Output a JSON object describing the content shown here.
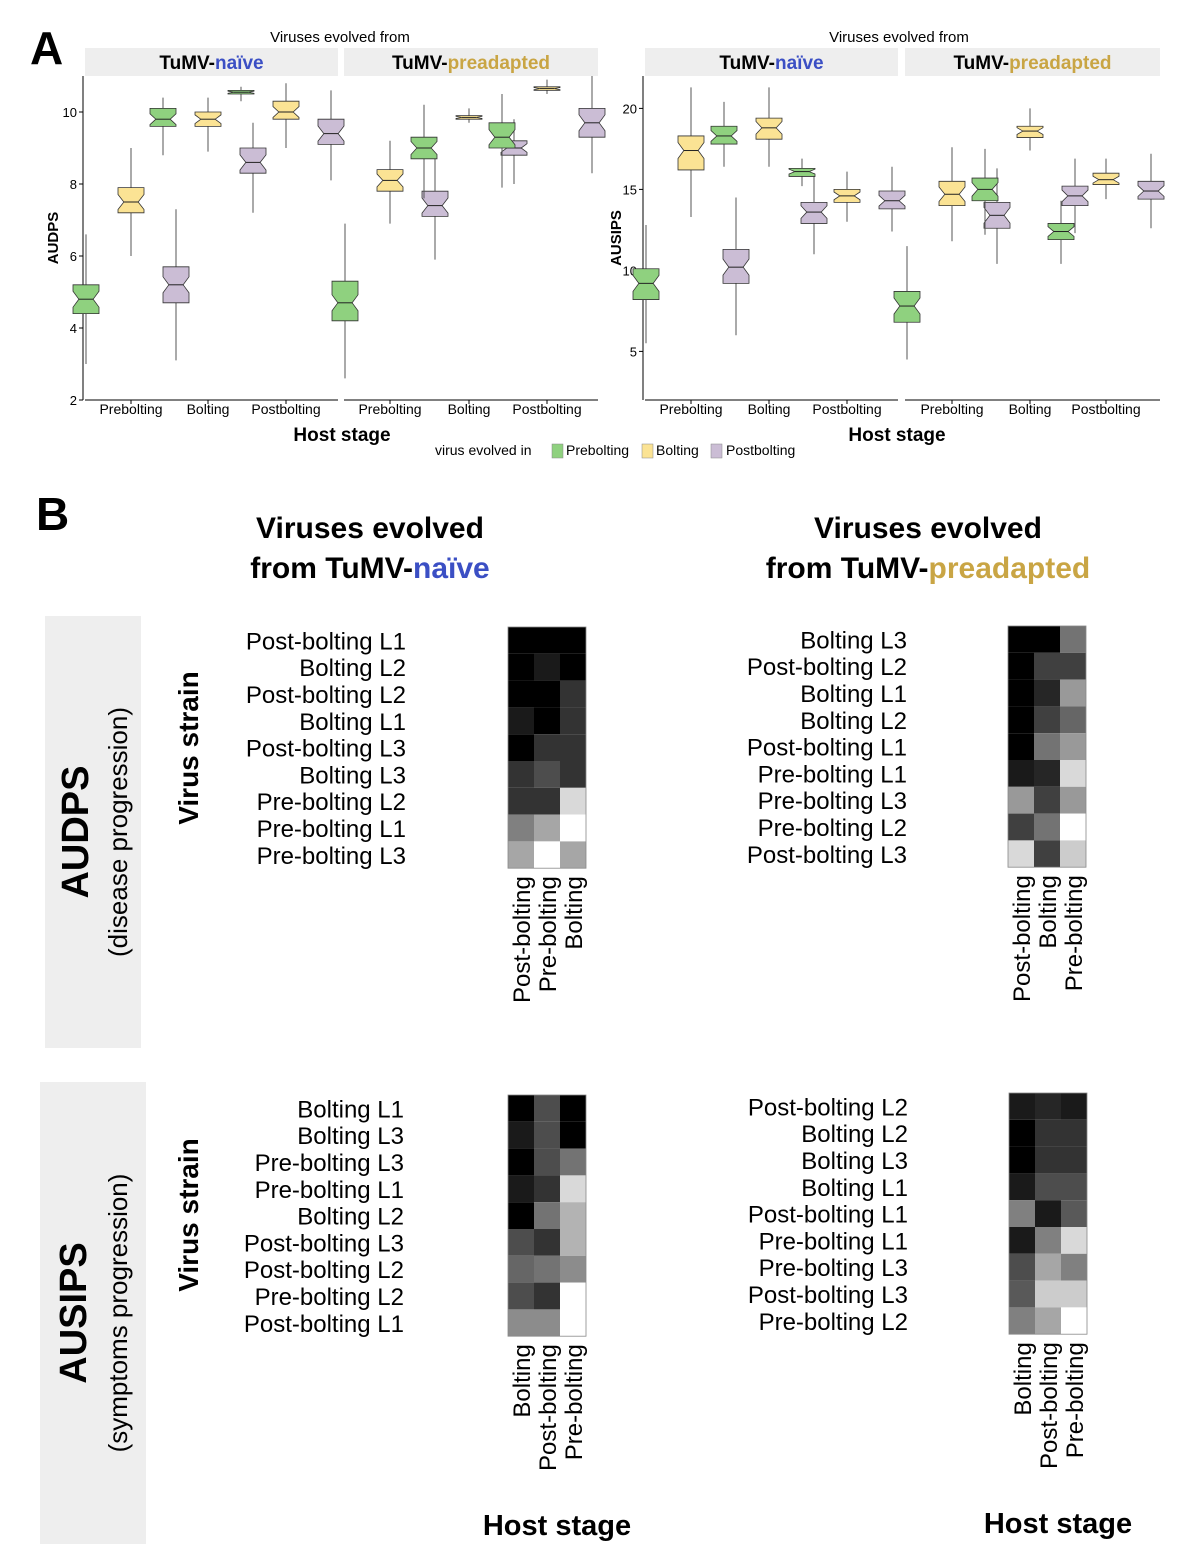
{
  "panel_a": {
    "letter": "A",
    "group_caption": "Viruses evolved from",
    "strip_prefix": "TuMV-",
    "strip_naive": "naïve",
    "strip_preadapted": "preadapted",
    "x_title": "Host stage",
    "host_stages": [
      "Prebolting",
      "Bolting",
      "Postbolting"
    ],
    "legend_title": "virus evolved in",
    "legend_items": [
      "Prebolting",
      "Bolting",
      "Postbolting"
    ]
  },
  "panel_b": {
    "letter": "B",
    "col_title_line1": "Viruses evolved",
    "col_title_line2_prefix": "from TuMV-",
    "naive_word": "naïve",
    "preadapted_word": "preadapted",
    "row_audps_main": "AUDPS",
    "row_audps_sub": "(disease progression)",
    "row_ausips_main": "AUSIPS",
    "row_ausips_sub": "(symptoms progression)",
    "y_title": "Virus strain",
    "x_title": "Host stage"
  },
  "colors": {
    "prebolting": "#8fd17f",
    "bolting": "#fbe394",
    "postbolting": "#cbbdd5",
    "naive_blue": "#3b4fc4",
    "preadapted_gold": "#c9a544",
    "strip_bg": "#eeeeee",
    "row_label_bg": "#eeeeee"
  },
  "chart_data": [
    {
      "type": "boxplot",
      "ylabel": "AUDPS",
      "xlabel": "Host stage",
      "ylim": [
        2,
        11
      ],
      "yticks": [
        2,
        4,
        6,
        8,
        10
      ],
      "facets": [
        "TuMV-naïve",
        "TuMV-preadapted"
      ],
      "categories": [
        "Prebolting",
        "Bolting",
        "Postbolting"
      ],
      "series_names": [
        "Prebolting",
        "Bolting",
        "Postbolting"
      ],
      "boxes": [
        {
          "facet": 0,
          "host": 0,
          "series": 0,
          "min": 3.0,
          "q1": 4.4,
          "median": 4.8,
          "q3": 5.2,
          "max": 6.6
        },
        {
          "facet": 0,
          "host": 0,
          "series": 1,
          "min": 6.0,
          "q1": 7.2,
          "median": 7.5,
          "q3": 7.9,
          "max": 9.0
        },
        {
          "facet": 0,
          "host": 0,
          "series": 2,
          "min": 3.1,
          "q1": 4.7,
          "median": 5.2,
          "q3": 5.7,
          "max": 7.3
        },
        {
          "facet": 0,
          "host": 1,
          "series": 0,
          "min": 8.8,
          "q1": 9.6,
          "median": 9.8,
          "q3": 10.1,
          "max": 10.4
        },
        {
          "facet": 0,
          "host": 1,
          "series": 1,
          "min": 8.9,
          "q1": 9.6,
          "median": 9.8,
          "q3": 10.0,
          "max": 10.4
        },
        {
          "facet": 0,
          "host": 1,
          "series": 2,
          "min": 7.2,
          "q1": 8.3,
          "median": 8.6,
          "q3": 9.0,
          "max": 9.7
        },
        {
          "facet": 0,
          "host": 2,
          "series": 0,
          "min": 10.3,
          "q1": 10.5,
          "median": 10.55,
          "q3": 10.6,
          "max": 10.7
        },
        {
          "facet": 0,
          "host": 2,
          "series": 1,
          "min": 9.0,
          "q1": 9.8,
          "median": 10.0,
          "q3": 10.3,
          "max": 10.8
        },
        {
          "facet": 0,
          "host": 2,
          "series": 2,
          "min": 8.1,
          "q1": 9.1,
          "median": 9.4,
          "q3": 9.8,
          "max": 10.6
        },
        {
          "facet": 1,
          "host": 0,
          "series": 0,
          "min": 2.6,
          "q1": 4.2,
          "median": 4.7,
          "q3": 5.3,
          "max": 6.9
        },
        {
          "facet": 1,
          "host": 0,
          "series": 1,
          "min": 6.9,
          "q1": 7.8,
          "median": 8.1,
          "q3": 8.4,
          "max": 9.2
        },
        {
          "facet": 1,
          "host": 0,
          "series": 2,
          "min": 5.9,
          "q1": 7.1,
          "median": 7.4,
          "q3": 7.8,
          "max": 8.8
        },
        {
          "facet": 1,
          "host": 1,
          "series": 0,
          "min": 7.6,
          "q1": 8.7,
          "median": 9.0,
          "q3": 9.3,
          "max": 10.2
        },
        {
          "facet": 1,
          "host": 1,
          "series": 1,
          "min": 9.7,
          "q1": 9.8,
          "median": 9.85,
          "q3": 9.9,
          "max": 10.1
        },
        {
          "facet": 1,
          "host": 1,
          "series": 2,
          "min": 8.0,
          "q1": 8.8,
          "median": 9.0,
          "q3": 9.2,
          "max": 9.8
        },
        {
          "facet": 1,
          "host": 2,
          "series": 0,
          "min": 7.9,
          "q1": 9.0,
          "median": 9.3,
          "q3": 9.7,
          "max": 10.5
        },
        {
          "facet": 1,
          "host": 2,
          "series": 1,
          "min": 10.5,
          "q1": 10.6,
          "median": 10.65,
          "q3": 10.7,
          "max": 10.9
        },
        {
          "facet": 1,
          "host": 2,
          "series": 2,
          "min": 8.3,
          "q1": 9.3,
          "median": 9.7,
          "q3": 10.1,
          "max": 11.0
        }
      ]
    },
    {
      "type": "boxplot",
      "ylabel": "AUSIPS",
      "xlabel": "Host stage",
      "ylim": [
        2,
        22
      ],
      "yticks": [
        5,
        10,
        15,
        20
      ],
      "facets": [
        "TuMV-naïve",
        "TuMV-preadapted"
      ],
      "categories": [
        "Prebolting",
        "Bolting",
        "Postbolting"
      ],
      "series_names": [
        "Prebolting",
        "Bolting",
        "Postbolting"
      ],
      "boxes": [
        {
          "facet": 0,
          "host": 0,
          "series": 0,
          "min": 5.5,
          "q1": 8.2,
          "median": 9.2,
          "q3": 10.1,
          "max": 12.8
        },
        {
          "facet": 0,
          "host": 0,
          "series": 1,
          "min": 13.3,
          "q1": 16.2,
          "median": 17.4,
          "q3": 18.3,
          "max": 21.3
        },
        {
          "facet": 0,
          "host": 0,
          "series": 2,
          "min": 6.0,
          "q1": 9.2,
          "median": 10.2,
          "q3": 11.3,
          "max": 14.5
        },
        {
          "facet": 0,
          "host": 1,
          "series": 0,
          "min": 16.4,
          "q1": 17.8,
          "median": 18.3,
          "q3": 18.9,
          "max": 20.4
        },
        {
          "facet": 0,
          "host": 1,
          "series": 1,
          "min": 16.4,
          "q1": 18.1,
          "median": 18.8,
          "q3": 19.4,
          "max": 21.3
        },
        {
          "facet": 0,
          "host": 1,
          "series": 2,
          "min": 11.0,
          "q1": 12.9,
          "median": 13.6,
          "q3": 14.2,
          "max": 16.0
        },
        {
          "facet": 0,
          "host": 2,
          "series": 0,
          "min": 15.2,
          "q1": 15.8,
          "median": 16.1,
          "q3": 16.3,
          "max": 16.9
        },
        {
          "facet": 0,
          "host": 2,
          "series": 1,
          "min": 13.0,
          "q1": 14.2,
          "median": 14.6,
          "q3": 15.0,
          "max": 16.1
        },
        {
          "facet": 0,
          "host": 2,
          "series": 2,
          "min": 12.4,
          "q1": 13.8,
          "median": 14.3,
          "q3": 14.9,
          "max": 16.4
        },
        {
          "facet": 1,
          "host": 0,
          "series": 0,
          "min": 4.5,
          "q1": 6.8,
          "median": 7.8,
          "q3": 8.7,
          "max": 11.5
        },
        {
          "facet": 1,
          "host": 0,
          "series": 1,
          "min": 11.8,
          "q1": 14.0,
          "median": 14.7,
          "q3": 15.5,
          "max": 17.6
        },
        {
          "facet": 1,
          "host": 0,
          "series": 2,
          "min": 10.4,
          "q1": 12.6,
          "median": 13.4,
          "q3": 14.2,
          "max": 16.3
        },
        {
          "facet": 1,
          "host": 1,
          "series": 0,
          "min": 12.2,
          "q1": 14.3,
          "median": 15.0,
          "q3": 15.7,
          "max": 17.5
        },
        {
          "facet": 1,
          "host": 1,
          "series": 1,
          "min": 17.4,
          "q1": 18.2,
          "median": 18.6,
          "q3": 18.9,
          "max": 20.0
        },
        {
          "facet": 1,
          "host": 1,
          "series": 2,
          "min": 12.3,
          "q1": 14.0,
          "median": 14.6,
          "q3": 15.2,
          "max": 16.9
        },
        {
          "facet": 1,
          "host": 2,
          "series": 0,
          "min": 10.4,
          "q1": 11.9,
          "median": 12.4,
          "q3": 12.9,
          "max": 14.3
        },
        {
          "facet": 1,
          "host": 2,
          "series": 1,
          "min": 14.4,
          "q1": 15.3,
          "median": 15.6,
          "q3": 16.0,
          "max": 16.9
        },
        {
          "facet": 1,
          "host": 2,
          "series": 2,
          "min": 12.6,
          "q1": 14.4,
          "median": 14.9,
          "q3": 15.5,
          "max": 17.2
        }
      ]
    },
    {
      "type": "heatmap",
      "row_group": "AUDPS",
      "column_group": "TuMV-naïve",
      "rows": [
        "Post-bolting L1",
        "Bolting L2",
        "Post-bolting L2",
        "Bolting L1",
        "Post-bolting L3",
        "Bolting L3",
        "Pre-bolting L2",
        "Pre-bolting L1",
        "Pre-bolting L3"
      ],
      "columns": [
        "Post-bolting",
        "Pre-bolting",
        "Bolting"
      ],
      "values": [
        [
          0,
          0,
          0
        ],
        [
          0,
          0.1,
          0
        ],
        [
          0,
          0,
          0.2
        ],
        [
          0.1,
          0,
          0.2
        ],
        [
          0,
          0.2,
          0.2
        ],
        [
          0.2,
          0.3,
          0.2
        ],
        [
          0.2,
          0.2,
          0.85
        ],
        [
          0.5,
          0.65,
          1
        ],
        [
          0.65,
          1,
          0.65
        ]
      ]
    },
    {
      "type": "heatmap",
      "row_group": "AUDPS",
      "column_group": "TuMV-preadapted",
      "rows": [
        "Bolting L3",
        "Post-bolting L2",
        "Bolting L1",
        "Bolting L2",
        "Post-bolting L1",
        "Pre-bolting L1",
        "Pre-bolting L3",
        "Pre-bolting L2",
        "Post-bolting L3"
      ],
      "columns": [
        "Post-bolting",
        "Bolting",
        "Pre-bolting"
      ],
      "values": [
        [
          0,
          0,
          0.45
        ],
        [
          0,
          0.25,
          0.25
        ],
        [
          0,
          0.15,
          0.6
        ],
        [
          0,
          0.25,
          0.4
        ],
        [
          0,
          0.45,
          0.6
        ],
        [
          0.1,
          0.15,
          0.85
        ],
        [
          0.6,
          0.25,
          0.6
        ],
        [
          0.25,
          0.45,
          1
        ],
        [
          0.85,
          0.25,
          0.8
        ]
      ]
    },
    {
      "type": "heatmap",
      "row_group": "AUSIPS",
      "column_group": "TuMV-naïve",
      "rows": [
        "Bolting L1",
        "Bolting L3",
        "Pre-bolting L3",
        "Pre-bolting L1",
        "Bolting L2",
        "Post-bolting L3",
        "Post-bolting L2",
        "Pre-bolting L2",
        "Post-bolting L1"
      ],
      "columns": [
        "Bolting",
        "Post-bolting",
        "Pre-bolting"
      ],
      "values": [
        [
          0,
          0.3,
          0
        ],
        [
          0.1,
          0.3,
          0
        ],
        [
          0,
          0.3,
          0.45
        ],
        [
          0.1,
          0.2,
          0.85
        ],
        [
          0,
          0.45,
          0.7
        ],
        [
          0.3,
          0.2,
          0.7
        ],
        [
          0.4,
          0.45,
          0.55
        ],
        [
          0.3,
          0.2,
          1
        ],
        [
          0.55,
          0.55,
          1
        ]
      ]
    },
    {
      "type": "heatmap",
      "row_group": "AUSIPS",
      "column_group": "TuMV-preadapted",
      "rows": [
        "Post-bolting L2",
        "Bolting L2",
        "Bolting L3",
        "Bolting L1",
        "Post-bolting L1",
        "Pre-bolting L1",
        "Pre-bolting L3",
        "Post-bolting L3",
        "Pre-bolting L2"
      ],
      "columns": [
        "Bolting",
        "Post-bolting",
        "Pre-bolting"
      ],
      "values": [
        [
          0.1,
          0.15,
          0.1
        ],
        [
          0,
          0.2,
          0.2
        ],
        [
          0,
          0.2,
          0.2
        ],
        [
          0.1,
          0.3,
          0.3
        ],
        [
          0.5,
          0.1,
          0.35
        ],
        [
          0.1,
          0.5,
          0.85
        ],
        [
          0.3,
          0.65,
          0.5
        ],
        [
          0.35,
          0.8,
          0.8
        ],
        [
          0.5,
          0.65,
          1
        ]
      ]
    }
  ]
}
